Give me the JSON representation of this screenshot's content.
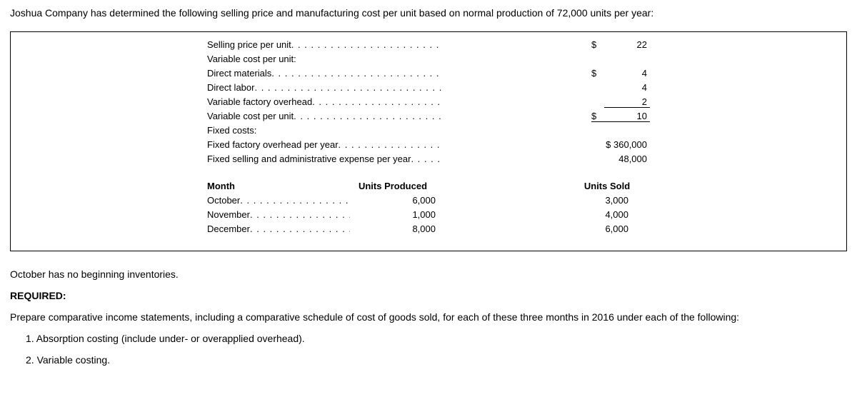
{
  "intro": "Joshua Company has determined the following selling price and manufacturing cost per unit based on normal production of 72,000 units per year:",
  "costs": {
    "selling_price_label": "Selling price per unit",
    "selling_price_sym": "$",
    "selling_price_val": "22",
    "var_cost_header": "Variable cost per unit:",
    "dm_label": "Direct materials",
    "dm_sym": "$",
    "dm_val": "4",
    "dl_label": "Direct labor",
    "dl_val": "4",
    "vfo_label": "Variable factory overhead",
    "vfo_val": "2",
    "vcpu_label": "Variable cost per unit",
    "vcpu_sym": "$",
    "vcpu_val": "10",
    "fixed_header": "Fixed costs:",
    "ffo_label": "Fixed factory overhead per year",
    "ffo_val": "$ 360,000",
    "fsa_label": "Fixed selling and administrative expense per year",
    "fsa_val": "48,000"
  },
  "monthTable": {
    "h1": "Month",
    "h2": "Units Produced",
    "h3": "Units Sold",
    "rows": [
      {
        "m": "October",
        "p": "6,000",
        "s": "3,000"
      },
      {
        "m": "November",
        "p": "1,000",
        "s": "4,000"
      },
      {
        "m": "December",
        "p": "8,000",
        "s": "6,000"
      }
    ]
  },
  "note": "October has no beginning inventories.",
  "required_label": "REQUIRED:",
  "required_text": "Prepare comparative income statements, including a comparative schedule of cost of goods sold, for each of these three months in 2016 under each of the following:",
  "item1": "1.  Absorption costing (include under- or overapplied overhead).",
  "item2": "2.  Variable costing."
}
